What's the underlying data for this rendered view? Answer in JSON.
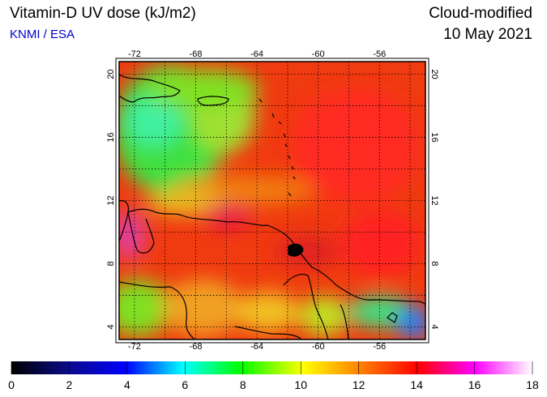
{
  "header": {
    "title": "Vitamin-D UV dose (kJ/m2)",
    "source": "KNMI / ESA",
    "mode": "Cloud-modified",
    "date": "10 May 2021"
  },
  "map": {
    "lon_range": [
      -73,
      -53
    ],
    "lat_range": [
      3.2,
      20.8
    ],
    "lon_ticks": [
      -72,
      -68,
      -64,
      -60,
      -56
    ],
    "lat_ticks": [
      4,
      8,
      12,
      16,
      20
    ]
  },
  "colorbar": {
    "min": 0,
    "max": 18,
    "tick_labels": [
      "0",
      "2",
      "4",
      "6",
      "8",
      "10",
      "12",
      "14",
      "16",
      "18"
    ]
  }
}
